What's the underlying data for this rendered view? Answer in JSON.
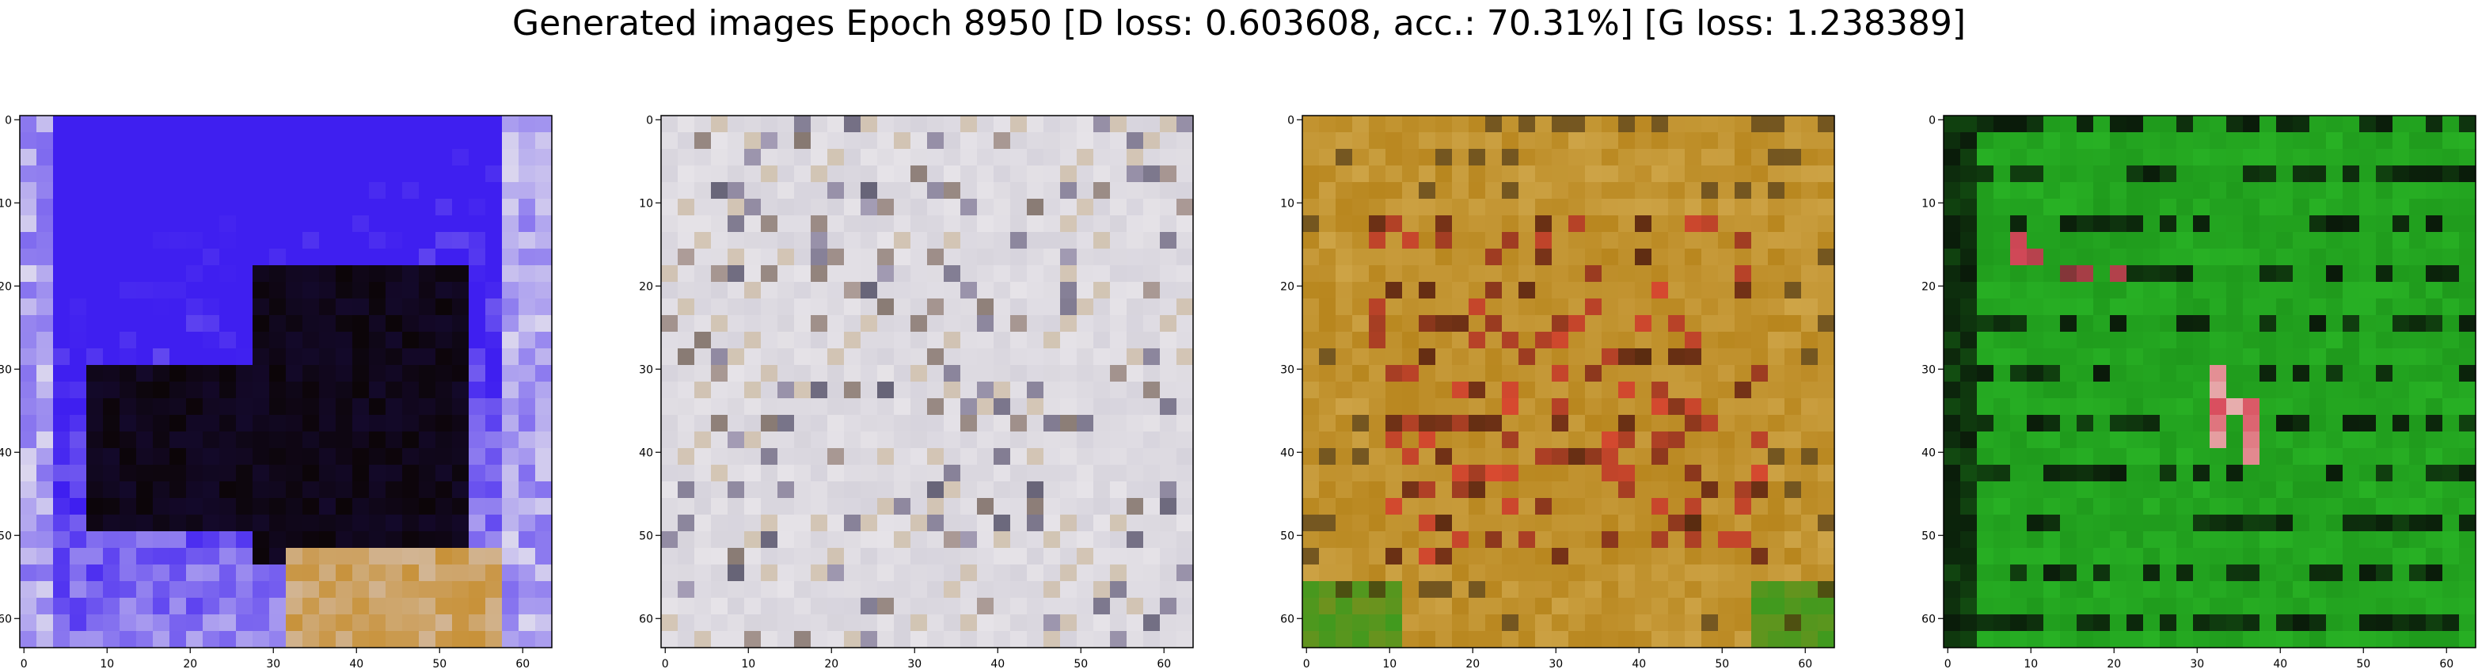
{
  "figure": {
    "suptitle": "Generated images Epoch 8950 [D loss: 0.603608, acc.: 70.31%] [G loss: 1.238389]"
  },
  "chart_data": [
    {
      "type": "image",
      "panel": 1,
      "xlim": [
        -0.5,
        63.5
      ],
      "ylim": [
        63.5,
        -0.5
      ],
      "xticks": [
        0,
        10,
        20,
        30,
        40,
        50,
        60
      ],
      "yticks": [
        0,
        10,
        20,
        30,
        40,
        50,
        60
      ],
      "colors": {
        "background": "#6a55e8",
        "accent": "#3f1ff0",
        "dark": "#0c0508",
        "light": "#dcd8ee",
        "warm": "#c8923a"
      }
    },
    {
      "type": "image",
      "panel": 2,
      "xlim": [
        -0.5,
        63.5
      ],
      "ylim": [
        63.5,
        -0.5
      ],
      "xticks": [
        0,
        10,
        20,
        30,
        40,
        50,
        60
      ],
      "yticks": [
        0,
        10,
        20,
        30,
        40,
        50,
        60
      ],
      "colors": {
        "background": "#d6d3dc",
        "accent": "#a79fb8",
        "dark": "#3a3a4a",
        "light": "#f1eef0",
        "warm": "#b89a6a"
      }
    },
    {
      "type": "image",
      "panel": 3,
      "xlim": [
        -0.5,
        63.5
      ],
      "ylim": [
        63.5,
        -0.5
      ],
      "xticks": [
        0,
        10,
        20,
        30,
        40,
        50,
        60
      ],
      "yticks": [
        0,
        10,
        20,
        30,
        40,
        50,
        60
      ],
      "colors": {
        "background": "#b8861e",
        "accent": "#d84a30",
        "dark": "#3a2408",
        "light": "#e8c878",
        "warm": "#3f9a1e"
      }
    },
    {
      "type": "image",
      "panel": 4,
      "xlim": [
        -0.5,
        63.5
      ],
      "ylim": [
        63.5,
        -0.5
      ],
      "xticks": [
        0,
        10,
        20,
        30,
        40,
        50,
        60
      ],
      "yticks": [
        0,
        10,
        20,
        30,
        40,
        50,
        60
      ],
      "colors": {
        "background": "#1f9a1c",
        "accent": "#2ec02a",
        "dark": "#0a1a0a",
        "light": "#d84a5a",
        "warm": "#e8b0b0"
      }
    }
  ]
}
